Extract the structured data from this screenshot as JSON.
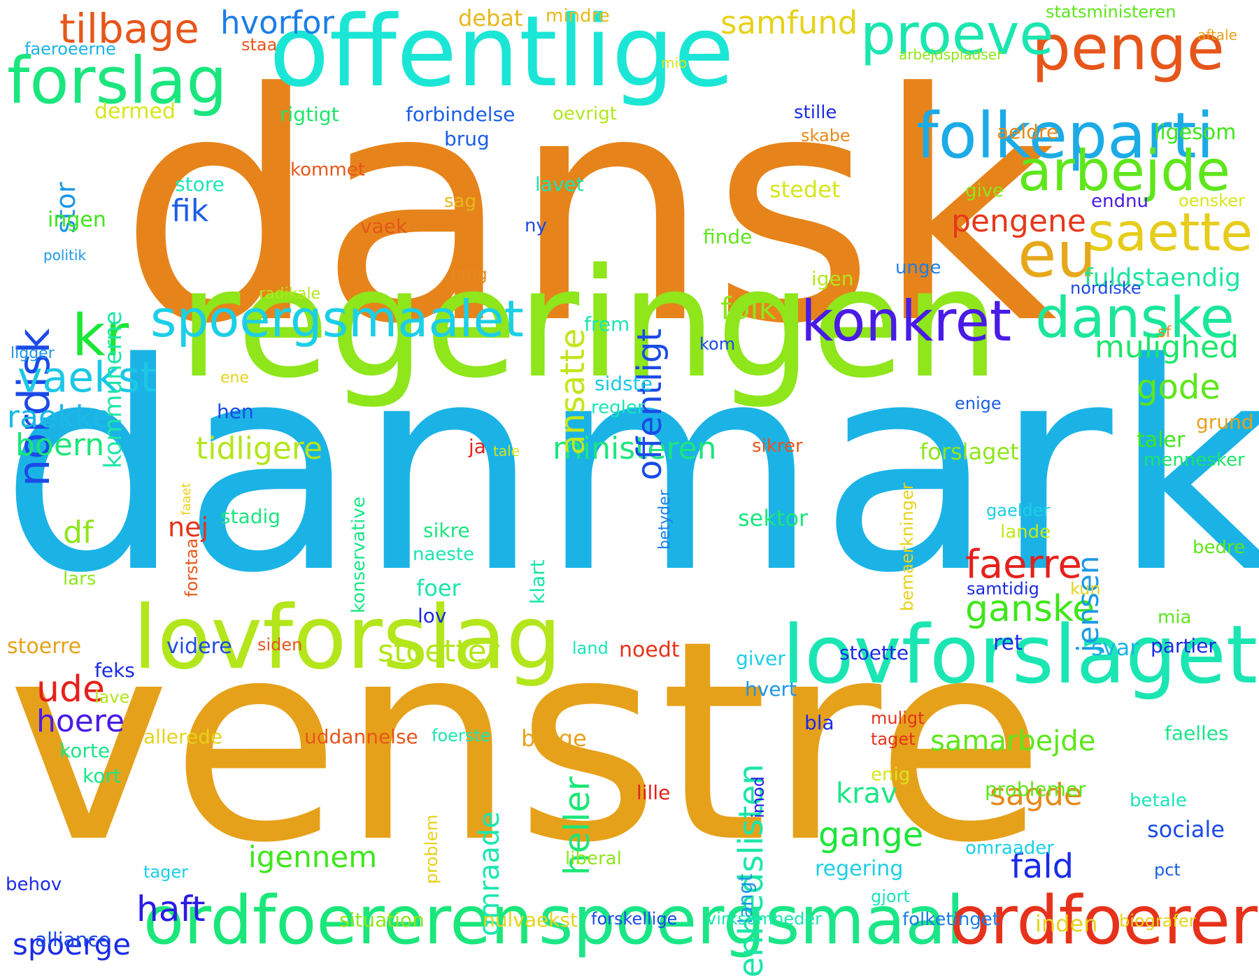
{
  "words": [
    {
      "text": "dansk",
      "color": "#e6841b"
    },
    {
      "text": "danmark",
      "color": "#1bb3e6"
    },
    {
      "text": "venstre",
      "color": "#e6a11b"
    },
    {
      "text": "regeringen",
      "color": "#8ee61b"
    },
    {
      "text": "offentlige",
      "color": "#1be6d6"
    },
    {
      "text": "lovforslag",
      "color": "#b3e61b"
    },
    {
      "text": "lovforslaget",
      "color": "#1be6b3"
    },
    {
      "text": "ordfoereren",
      "color": "#1be67a"
    },
    {
      "text": "spoergsmaal",
      "color": "#1be687"
    },
    {
      "text": "ordfoerer",
      "color": "#e6321b"
    },
    {
      "text": "folkeparti",
      "color": "#1babe6"
    },
    {
      "text": "forslag",
      "color": "#1be67e"
    },
    {
      "text": "penge",
      "color": "#e6561b"
    },
    {
      "text": "proeve",
      "color": "#1be6b0"
    },
    {
      "text": "arbejde",
      "color": "#5ee61b"
    },
    {
      "text": "saette",
      "color": "#e6cc1b"
    },
    {
      "text": "eu",
      "color": "#e6a81b"
    },
    {
      "text": "danske",
      "color": "#1be69a"
    },
    {
      "text": "konkret",
      "color": "#4a1be6"
    },
    {
      "text": "spoergsmaalet",
      "color": "#1bcfe6"
    },
    {
      "text": "kr",
      "color": "#1be637"
    },
    {
      "text": "nordisk",
      "color": "#1b4ae6"
    },
    {
      "text": "tilbage",
      "color": "#e6561b"
    },
    {
      "text": "hvorfor",
      "color": "#1b7ee6"
    },
    {
      "text": "samfund",
      "color": "#e6d21b"
    },
    {
      "text": "vaekst",
      "color": "#1bc8e6"
    },
    {
      "text": "raekke",
      "color": "#1bb9e6"
    },
    {
      "text": "boern",
      "color": "#1be677"
    },
    {
      "text": "tidligere",
      "color": "#b3e61b"
    },
    {
      "text": "ministeren",
      "color": "#1be67e"
    },
    {
      "text": "ansatte",
      "color": "#c3e61b"
    },
    {
      "text": "offentligt",
      "color": "#1b4ae6"
    },
    {
      "text": "stor",
      "color": "#1b96e6"
    },
    {
      "text": "kommunerne",
      "color": "#1be6a5"
    },
    {
      "text": "fik",
      "color": "#1b5ee6"
    },
    {
      "text": "df",
      "color": "#8ee61b"
    },
    {
      "text": "nej",
      "color": "#e6321b"
    },
    {
      "text": "faerre",
      "color": "#e6201b"
    },
    {
      "text": "ganske",
      "color": "#3ee61b"
    },
    {
      "text": "jensen",
      "color": "#1b9ae6"
    },
    {
      "text": "mulighed",
      "color": "#1be66a"
    },
    {
      "text": "gode",
      "color": "#5ee61b"
    },
    {
      "text": "folk",
      "color": "#8ee61b"
    },
    {
      "text": "pengene",
      "color": "#e6381b"
    },
    {
      "text": "fuldstaendig",
      "color": "#1be69e"
    },
    {
      "text": "stoetter",
      "color": "#b3e61b"
    },
    {
      "text": "ude",
      "color": "#e6201b"
    },
    {
      "text": "hoere",
      "color": "#4a1be6"
    },
    {
      "text": "haft",
      "color": "#2b1be6"
    },
    {
      "text": "spoerge",
      "color": "#1b2be6"
    },
    {
      "text": "heller",
      "color": "#1be677"
    },
    {
      "text": "enhedslisten",
      "color": "#1be6a8"
    },
    {
      "text": "igennem",
      "color": "#3ee61b"
    },
    {
      "text": "gange",
      "color": "#1be637"
    },
    {
      "text": "sagde",
      "color": "#e6891b"
    },
    {
      "text": "fald",
      "color": "#1b2be6"
    },
    {
      "text": "samarbejde",
      "color": "#5ee61b"
    },
    {
      "text": "krav",
      "color": "#1be687"
    },
    {
      "text": "omraade",
      "color": "#1be6b0"
    },
    {
      "text": "sociale",
      "color": "#1b4ae6"
    },
    {
      "text": "alliance",
      "color": "#1b4ae6"
    },
    {
      "text": "inden",
      "color": "#e6d21b"
    },
    {
      "text": "dermed",
      "color": "#d6e61b"
    },
    {
      "text": "rigtigt",
      "color": "#1be66a"
    },
    {
      "text": "forbindelse",
      "color": "#1b5ee6"
    },
    {
      "text": "brug",
      "color": "#1b5ee6"
    },
    {
      "text": "oevrigt",
      "color": "#b3e61b"
    },
    {
      "text": "stille",
      "color": "#1b2be6"
    },
    {
      "text": "skabe",
      "color": "#e6891b"
    },
    {
      "text": "aeldre",
      "color": "#e6891b"
    },
    {
      "text": "ligesom",
      "color": "#3ee61b"
    },
    {
      "text": "store",
      "color": "#1be6b9"
    },
    {
      "text": "kommet",
      "color": "#e6561b"
    },
    {
      "text": "lavet",
      "color": "#1be6b0"
    },
    {
      "text": "stedet",
      "color": "#d6e61b"
    },
    {
      "text": "give",
      "color": "#8ee61b"
    },
    {
      "text": "endnu",
      "color": "#4a1be6"
    },
    {
      "text": "oensker",
      "color": "#d6e61b"
    },
    {
      "text": "ingen",
      "color": "#3ee61b"
    },
    {
      "text": "sag",
      "color": "#e6b81b"
    },
    {
      "text": "vaek",
      "color": "#e6561b"
    },
    {
      "text": "ny",
      "color": "#1b4ae6"
    },
    {
      "text": "finde",
      "color": "#5ee61b"
    },
    {
      "text": "politik",
      "color": "#1b96e6"
    },
    {
      "text": "lang",
      "color": "#e6891b"
    },
    {
      "text": "igen",
      "color": "#b3e61b"
    },
    {
      "text": "unge",
      "color": "#1b7ee6"
    },
    {
      "text": "nordiske",
      "color": "#1b4ae6"
    },
    {
      "text": "radikale",
      "color": "#b3e61b"
    },
    {
      "text": "frem",
      "color": "#1be6b0"
    },
    {
      "text": "kom",
      "color": "#1b4ae6"
    },
    {
      "text": "sf",
      "color": "#e6891b"
    },
    {
      "text": "ligger",
      "color": "#1b96e6"
    },
    {
      "text": "ene",
      "color": "#e6d21b"
    },
    {
      "text": "hen",
      "color": "#1b4ae6"
    },
    {
      "text": "sidste",
      "color": "#1bc8e6"
    },
    {
      "text": "regler",
      "color": "#1be6b9"
    },
    {
      "text": "enige",
      "color": "#1b5ee6"
    },
    {
      "text": "grund",
      "color": "#e6a11b"
    },
    {
      "text": "ja",
      "color": "#e6201b"
    },
    {
      "text": "tale",
      "color": "#d6e61b"
    },
    {
      "text": "sikrer",
      "color": "#e6561b"
    },
    {
      "text": "forslaget",
      "color": "#8ee61b"
    },
    {
      "text": "taler",
      "color": "#3ee61b"
    },
    {
      "text": "mennesker",
      "color": "#1be66a"
    },
    {
      "text": "faaet",
      "color": "#e6d21b"
    },
    {
      "text": "stadig",
      "color": "#1be67e"
    },
    {
      "text": "sektor",
      "color": "#1be67e"
    },
    {
      "text": "gaelder",
      "color": "#1bcfe6"
    },
    {
      "text": "lande",
      "color": "#c3e61b"
    },
    {
      "text": "bemaerkninger",
      "color": "#e6d21b"
    },
    {
      "text": "betyder",
      "color": "#1b7ee6"
    },
    {
      "text": "konservative",
      "color": "#1be687"
    },
    {
      "text": "sikre",
      "color": "#1be67e"
    },
    {
      "text": "naeste",
      "color": "#1be6b0"
    },
    {
      "text": "bedre",
      "color": "#5ee61b"
    },
    {
      "text": "lars",
      "color": "#8ee61b"
    },
    {
      "text": "forstaa",
      "color": "#e6561b"
    },
    {
      "text": "foer",
      "color": "#1be6a5"
    },
    {
      "text": "klart",
      "color": "#1be6a5"
    },
    {
      "text": "lov",
      "color": "#1b2be6"
    },
    {
      "text": "samtidig",
      "color": "#1b2be6"
    },
    {
      "text": "kun",
      "color": "#e6d21b"
    },
    {
      "text": "mia",
      "color": "#5ee61b"
    },
    {
      "text": "stoerre",
      "color": "#e6a11b"
    },
    {
      "text": "siden",
      "color": "#e6561b"
    },
    {
      "text": "land",
      "color": "#1be6b9"
    },
    {
      "text": "noedt",
      "color": "#e6321b"
    },
    {
      "text": "stoette",
      "color": "#1b2be6"
    },
    {
      "text": "ret",
      "color": "#1b2be6"
    },
    {
      "text": "svar",
      "color": "#1bb3e6"
    },
    {
      "text": "partier",
      "color": "#1b2be6"
    },
    {
      "text": "videre",
      "color": "#1b4ae6"
    },
    {
      "text": "feks",
      "color": "#1b2be6"
    },
    {
      "text": "lave",
      "color": "#b3e61b"
    },
    {
      "text": "giver",
      "color": "#1bcfe6"
    },
    {
      "text": "hvert",
      "color": "#1b96e6"
    },
    {
      "text": "bla",
      "color": "#1b2be6"
    },
    {
      "text": "muligt",
      "color": "#e6321b"
    },
    {
      "text": "taget",
      "color": "#e6321b"
    },
    {
      "text": "faelles",
      "color": "#1be687"
    },
    {
      "text": "allerede",
      "color": "#e6d21b"
    },
    {
      "text": "uddannelse",
      "color": "#e6561b"
    },
    {
      "text": "foerste",
      "color": "#1be6b0"
    },
    {
      "text": "bruge",
      "color": "#e6a11b"
    },
    {
      "text": "korte",
      "color": "#1be687"
    },
    {
      "text": "kort",
      "color": "#1be687"
    },
    {
      "text": "enig",
      "color": "#d6e61b"
    },
    {
      "text": "problemer",
      "color": "#5ee61b"
    },
    {
      "text": "betale",
      "color": "#1be6b9"
    },
    {
      "text": "lille",
      "color": "#e6201b"
    },
    {
      "text": "imod",
      "color": "#2b1be6"
    },
    {
      "text": "problem",
      "color": "#e6d21b"
    },
    {
      "text": "langt",
      "color": "#1b96e6"
    },
    {
      "text": "omraader",
      "color": "#1bcfe6"
    },
    {
      "text": "liberal",
      "color": "#8ee61b"
    },
    {
      "text": "regering",
      "color": "#1bcfe6"
    },
    {
      "text": "pct",
      "color": "#1b5ee6"
    },
    {
      "text": "behov",
      "color": "#1b2be6"
    },
    {
      "text": "tager",
      "color": "#1bcfe6"
    },
    {
      "text": "gjort",
      "color": "#1be6b9"
    },
    {
      "text": "situation",
      "color": "#8ee61b"
    },
    {
      "text": "nulvaekst",
      "color": "#e6d21b"
    },
    {
      "text": "forskellige",
      "color": "#1b4ae6"
    },
    {
      "text": "virksomheder",
      "color": "#1be6b0"
    },
    {
      "text": "folketinget",
      "color": "#1b7ee6"
    },
    {
      "text": "biografer",
      "color": "#e6d21b"
    },
    {
      "text": "debat",
      "color": "#e6b81b"
    },
    {
      "text": "mindre",
      "color": "#e6b81b"
    },
    {
      "text": "statsministeren",
      "color": "#5ee61b"
    },
    {
      "text": "aftale",
      "color": "#e6a11b"
    },
    {
      "text": "faeroeerne",
      "color": "#1bb3e6"
    },
    {
      "text": "staa",
      "color": "#e6561b"
    },
    {
      "text": "mio",
      "color": "#d6e61b"
    },
    {
      "text": "arbejdspladser",
      "color": "#8ee61b"
    }
  ]
}
